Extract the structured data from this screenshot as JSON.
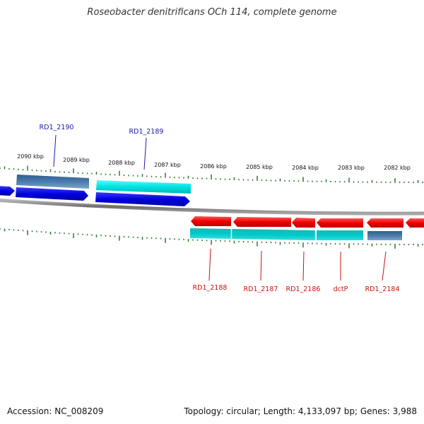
{
  "title": "Roseobacter denitrificans OCh 114, complete genome",
  "footer": {
    "accession": "Accession: NC_008209",
    "summary": "Topology: circular; Length: 4,133,097 bp; Genes: 3,988"
  },
  "colors": {
    "top_label": "#1a1aaa",
    "bottom_label": "#cc1111",
    "tick": "#2a7a2a",
    "backbone": "#888888"
  },
  "kbp_labels": [
    "2090 kbp",
    "2089 kbp",
    "2088 kbp",
    "2087 kbp",
    "2086 kbp",
    "2085 kbp",
    "2084 kbp",
    "2083 kbp",
    "2082 kbp"
  ],
  "genes_top": [
    {
      "label": "RD1_2190",
      "strand": "forward",
      "color": "#4a7aaa"
    },
    {
      "label": "RD1_2189",
      "strand": "forward",
      "color": "#00dada"
    }
  ],
  "genes_bottom": [
    {
      "label": "RD1_2188",
      "strand": "reverse",
      "color": "#00c4c4"
    },
    {
      "label": "RD1_2187",
      "strand": "reverse",
      "color": "#00c4c4"
    },
    {
      "label": "RD1_2186",
      "strand": "reverse",
      "color": "#00c4c4"
    },
    {
      "label": "dctP",
      "strand": "reverse",
      "color": "#00c4c4"
    },
    {
      "label": "RD1_2184",
      "strand": "reverse",
      "color": "#4a7aaa"
    }
  ]
}
